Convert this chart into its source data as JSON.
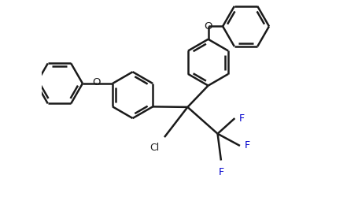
{
  "background_color": "#ffffff",
  "bond_color": "#1a1a1a",
  "label_color_F": "#0000cd",
  "line_width": 1.8,
  "figsize": [
    4.55,
    2.5
  ],
  "dpi": 100,
  "xlim": [
    -0.85,
    0.75
  ],
  "ylim": [
    -0.52,
    0.62
  ]
}
